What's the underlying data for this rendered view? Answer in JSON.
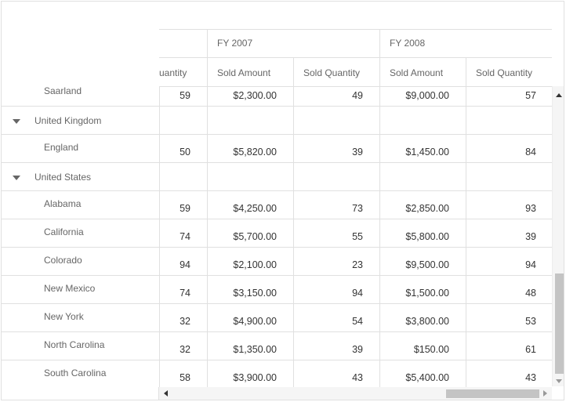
{
  "header": {
    "years": [
      "FY 2007",
      "FY 2008"
    ],
    "measures": [
      "uantity",
      "Sold Amount",
      "Sold Quantity",
      "Sold Amount",
      "Sold Quantity"
    ]
  },
  "rows": [
    {
      "type": "child",
      "label": "Saarland",
      "values": [
        "59",
        "$2,300.00",
        "49",
        "$9,000.00",
        "57"
      ]
    },
    {
      "type": "group",
      "label": "United Kingdom",
      "values": [
        "",
        "",
        "",
        "",
        ""
      ]
    },
    {
      "type": "child",
      "label": "England",
      "values": [
        "50",
        "$5,820.00",
        "39",
        "$1,450.00",
        "84"
      ]
    },
    {
      "type": "group",
      "label": "United States",
      "values": [
        "",
        "",
        "",
        "",
        ""
      ]
    },
    {
      "type": "child",
      "label": "Alabama",
      "values": [
        "59",
        "$4,250.00",
        "73",
        "$2,850.00",
        "93"
      ]
    },
    {
      "type": "child",
      "label": "California",
      "values": [
        "74",
        "$5,700.00",
        "55",
        "$5,800.00",
        "39"
      ]
    },
    {
      "type": "child",
      "label": "Colorado",
      "values": [
        "94",
        "$2,100.00",
        "23",
        "$9,500.00",
        "94"
      ]
    },
    {
      "type": "child",
      "label": "New Mexico",
      "values": [
        "74",
        "$3,150.00",
        "94",
        "$1,500.00",
        "48"
      ]
    },
    {
      "type": "child",
      "label": "New York",
      "values": [
        "32",
        "$4,900.00",
        "54",
        "$3,800.00",
        "53"
      ]
    },
    {
      "type": "child",
      "label": "North Carolina",
      "values": [
        "32",
        "$1,350.00",
        "39",
        "$150.00",
        "61"
      ]
    },
    {
      "type": "child",
      "label": "South Carolina",
      "values": [
        "58",
        "$3,900.00",
        "43",
        "$5,400.00",
        "43"
      ]
    }
  ],
  "icons": {
    "group_toggle": "caret-down-icon"
  }
}
